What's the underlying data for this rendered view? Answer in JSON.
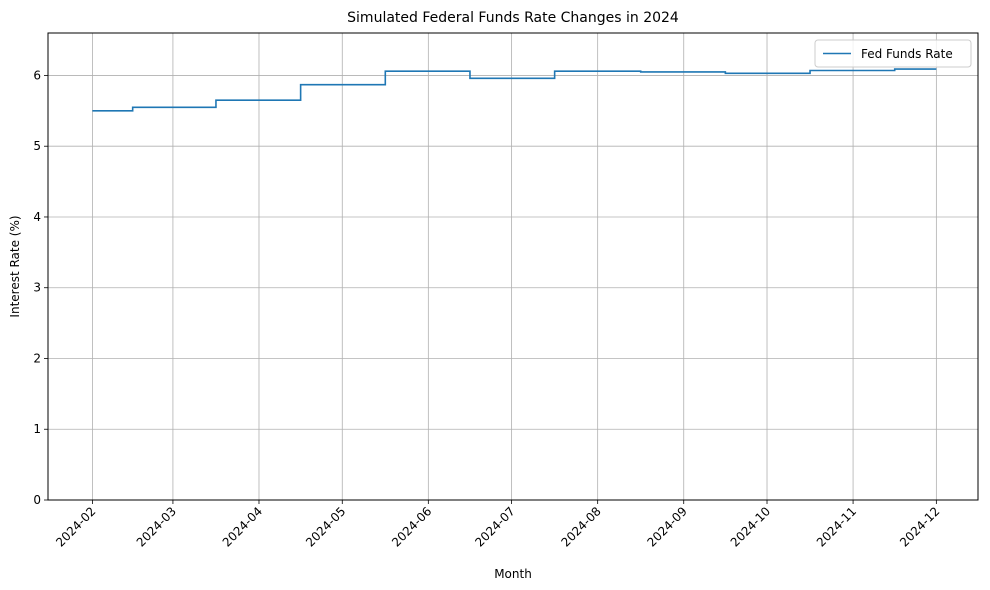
{
  "chart_data": {
    "type": "line",
    "step": "mid",
    "title": "Simulated Federal Funds Rate Changes in 2024",
    "xlabel": "Month",
    "ylabel": "Interest Rate (%)",
    "x": [
      "2024-02-01",
      "2024-03-01",
      "2024-04-01",
      "2024-05-01",
      "2024-06-01",
      "2024-07-01",
      "2024-08-01",
      "2024-09-01",
      "2024-10-01",
      "2024-11-01",
      "2024-12-01"
    ],
    "x_ticks": [
      "2024-02",
      "2024-03",
      "2024-04",
      "2024-05",
      "2024-06",
      "2024-07",
      "2024-08",
      "2024-09",
      "2024-10",
      "2024-11",
      "2024-12"
    ],
    "series": [
      {
        "name": "Fed Funds Rate",
        "color": "#1f77b4",
        "values": [
          5.5,
          5.55,
          5.65,
          5.87,
          6.06,
          5.96,
          6.06,
          6.05,
          6.03,
          6.07,
          6.09
        ]
      }
    ],
    "y_ticks": [
      0,
      1,
      2,
      3,
      4,
      5,
      6
    ],
    "ylim": [
      0,
      6.6
    ],
    "xlim": [
      "2024-01-16",
      "2024-12-16"
    ],
    "grid": true,
    "legend": "top-right"
  }
}
